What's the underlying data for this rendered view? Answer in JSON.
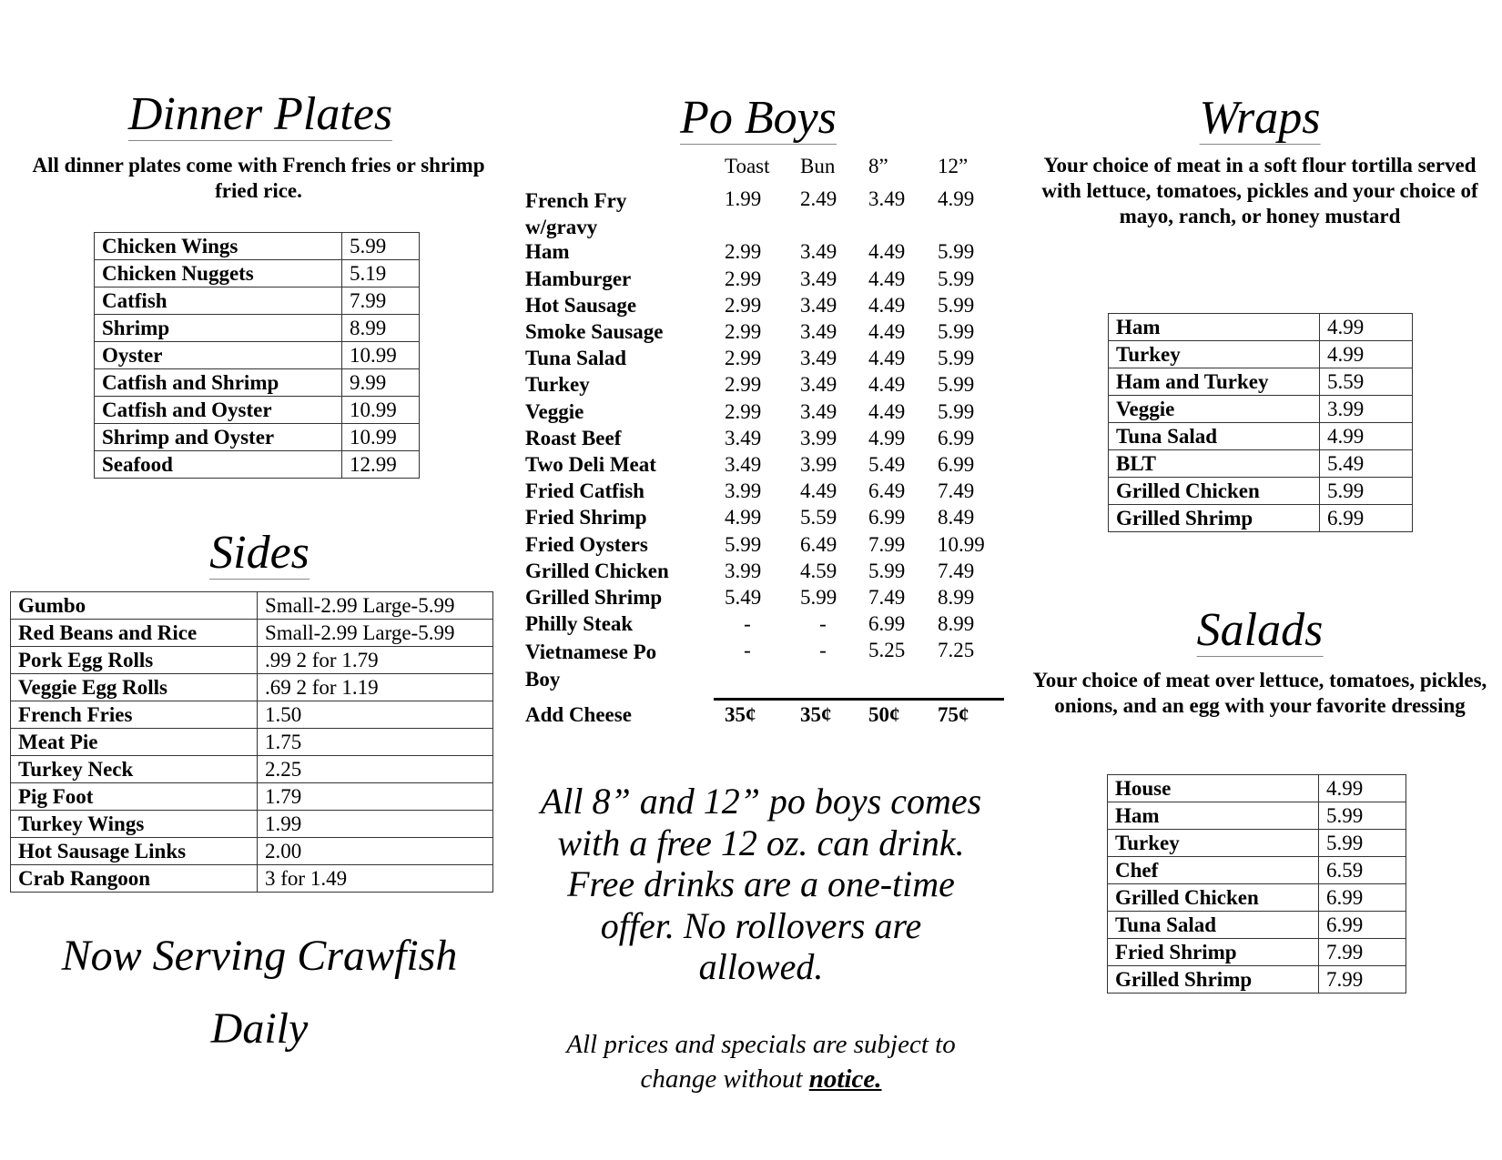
{
  "dinner": {
    "title": "Dinner Plates",
    "desc": "All dinner plates come with French fries or shrimp fried rice.",
    "items": [
      [
        "Chicken Wings",
        "5.99"
      ],
      [
        "Chicken Nuggets",
        "5.19"
      ],
      [
        "Catfish",
        "7.99"
      ],
      [
        "Shrimp",
        "8.99"
      ],
      [
        "Oyster",
        "10.99"
      ],
      [
        "Catfish and Shrimp",
        "9.99"
      ],
      [
        "Catfish and Oyster",
        "10.99"
      ],
      [
        "Shrimp and Oyster",
        "10.99"
      ],
      [
        "Seafood",
        "12.99"
      ]
    ]
  },
  "sides": {
    "title": "Sides",
    "items": [
      [
        "Gumbo",
        "Small-2.99 Large-5.99"
      ],
      [
        "Red Beans and Rice",
        "Small-2.99 Large-5.99"
      ],
      [
        "Pork Egg Rolls",
        ".99 2 for 1.79"
      ],
      [
        "Veggie Egg Rolls",
        ".69 2 for 1.19"
      ],
      [
        "French Fries",
        "1.50"
      ],
      [
        "Meat Pie",
        "1.75"
      ],
      [
        "Turkey Neck",
        "2.25"
      ],
      [
        "Pig Foot",
        "1.79"
      ],
      [
        "Turkey Wings",
        "1.99"
      ],
      [
        "Hot Sausage Links",
        "2.00"
      ],
      [
        "Crab Rangoon",
        "3 for 1.49"
      ]
    ]
  },
  "crawfish": {
    "line1": "Now Serving Crawfish",
    "line2": "Daily"
  },
  "poboys": {
    "title": "Po Boys",
    "headers": [
      "Toast",
      "Bun",
      "8”",
      "12”"
    ],
    "items": [
      [
        "French Fry w/gravy",
        "1.99",
        "2.49",
        "3.49",
        "4.99"
      ],
      [
        "Ham",
        "2.99",
        "3.49",
        "4.49",
        "5.99"
      ],
      [
        "Hamburger",
        "2.99",
        "3.49",
        "4.49",
        "5.99"
      ],
      [
        "Hot Sausage",
        "2.99",
        "3.49",
        "4.49",
        "5.99"
      ],
      [
        "Smoke Sausage",
        "2.99",
        "3.49",
        "4.49",
        "5.99"
      ],
      [
        "Tuna Salad",
        "2.99",
        "3.49",
        "4.49",
        "5.99"
      ],
      [
        "Turkey",
        "2.99",
        "3.49",
        "4.49",
        "5.99"
      ],
      [
        "Veggie",
        "2.99",
        "3.49",
        "4.49",
        "5.99"
      ],
      [
        "Roast Beef",
        "3.49",
        "3.99",
        "4.99",
        "6.99"
      ],
      [
        "Two Deli Meat",
        "3.49",
        "3.99",
        "5.49",
        "6.99"
      ],
      [
        "Fried Catfish",
        "3.99",
        "4.49",
        "6.49",
        "7.49"
      ],
      [
        "Fried Shrimp",
        "4.99",
        "5.59",
        "6.99",
        "8.49"
      ],
      [
        "Fried Oysters",
        "5.99",
        "6.49",
        "7.99",
        "10.99"
      ],
      [
        "Grilled Chicken",
        "3.99",
        "4.59",
        "5.99",
        "7.49"
      ],
      [
        "Grilled Shrimp",
        "5.49",
        "5.99",
        "7.49",
        "8.99"
      ],
      [
        "Philly Steak",
        "-",
        "-",
        "6.99",
        "8.99"
      ],
      [
        "Vietnamese Po Boy",
        "-",
        "-",
        "5.25",
        "7.25"
      ]
    ],
    "cheese": [
      "Add Cheese",
      "35¢",
      "35¢",
      "50¢",
      "75¢"
    ],
    "promo": [
      "All 8” and 12” po boys comes",
      "with a free 12 oz. can drink.",
      "Free drinks are a one-time",
      "offer. No rollovers are",
      "allowed."
    ],
    "notice_pre": "All prices and specials are subject to",
    "notice_mid": "change without ",
    "notice_bold": "notice."
  },
  "wraps": {
    "title": "Wraps",
    "desc": "Your choice of meat in a soft flour tortilla served with lettuce, tomatoes, pickles and your choice of mayo, ranch, or honey mustard",
    "items": [
      [
        "Ham",
        "4.99"
      ],
      [
        "Turkey",
        "4.99"
      ],
      [
        "Ham and Turkey",
        "5.59"
      ],
      [
        "Veggie",
        "3.99"
      ],
      [
        "Tuna Salad",
        "4.99"
      ],
      [
        "BLT",
        "5.49"
      ],
      [
        "Grilled Chicken",
        "5.99"
      ],
      [
        "Grilled Shrimp",
        "6.99"
      ]
    ]
  },
  "salads": {
    "title": "Salads",
    "desc": "Your choice of meat over lettuce, tomatoes, pickles, onions, and an egg with your favorite dressing",
    "items": [
      [
        "House",
        "4.99"
      ],
      [
        "Ham",
        "5.99"
      ],
      [
        "Turkey",
        "5.99"
      ],
      [
        "Chef",
        "6.59"
      ],
      [
        "Grilled Chicken",
        "6.99"
      ],
      [
        "Tuna Salad",
        "6.99"
      ],
      [
        "Fried Shrimp",
        "7.99"
      ],
      [
        "Grilled Shrimp",
        "7.99"
      ]
    ]
  }
}
